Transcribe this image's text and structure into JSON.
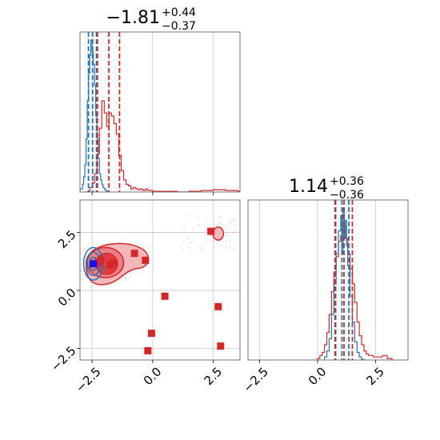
{
  "colors": {
    "red": "#d62728",
    "blue": "#1f77b4",
    "red_fill_outer": "#f4b8bb",
    "red_fill_mid": "#eb7f84",
    "red_fill_inner": "#e03c44"
  },
  "chart_data": [
    {
      "type": "histogram",
      "panel": "top-left",
      "title": {
        "value": "−1.81",
        "sup": "+0.44",
        "sub": "−0.37"
      },
      "xlim": [
        -3.0,
        3.6
      ],
      "xticks": [
        -2.5,
        0.0,
        2.5
      ],
      "grid": true,
      "red_quantiles": [
        -2.28,
        -1.81,
        -1.37
      ],
      "blue_quantiles": [
        -2.65,
        -2.48,
        -2.32
      ],
      "series": [
        {
          "name": "",
          "color": "red",
          "x": [
            -2.8,
            -2.7,
            -2.6,
            -2.5,
            -2.4,
            -2.3,
            -2.2,
            -2.1,
            -2.0,
            -1.9,
            -1.8,
            -1.7,
            -1.6,
            -1.5,
            -1.4,
            -1.3,
            -1.2,
            -1.1,
            -1.0,
            -0.9,
            -0.8,
            -0.7,
            -0.6,
            -0.5,
            -0.4,
            -0.3,
            -0.2,
            0.0,
            0.5,
            1.0,
            1.5,
            2.0,
            2.5,
            3.0,
            3.5
          ],
          "y": [
            0,
            0,
            0.03,
            0.06,
            0.12,
            0.25,
            0.42,
            0.6,
            0.52,
            0.43,
            0.52,
            0.5,
            0.45,
            0.38,
            0.24,
            0.14,
            0.08,
            0.05,
            0.04,
            0.02,
            0.03,
            0.02,
            0.015,
            0.02,
            0.01,
            0.02,
            0.01,
            0.005,
            0.005,
            0,
            0.005,
            0.01,
            0.015,
            0.01,
            0.005
          ]
        },
        {
          "name": "",
          "color": "blue",
          "x": [
            -3.0,
            -2.9,
            -2.85,
            -2.8,
            -2.75,
            -2.7,
            -2.65,
            -2.6,
            -2.55,
            -2.5,
            -2.45,
            -2.4,
            -2.35,
            -2.3,
            -2.25,
            -2.2,
            -2.15,
            -2.1,
            -2.05,
            -2.0,
            -1.95,
            -1.9
          ],
          "y": [
            0.02,
            0.05,
            0.1,
            0.18,
            0.35,
            0.6,
            0.78,
            0.9,
            1.0,
            0.92,
            0.84,
            0.7,
            0.5,
            0.35,
            0.22,
            0.12,
            0.08,
            0.05,
            0.03,
            0.02,
            0.01,
            0.005
          ]
        }
      ]
    },
    {
      "type": "contour+scatter",
      "panel": "bottom-left",
      "xlim": [
        -3.0,
        3.6
      ],
      "ylim": [
        -3.0,
        3.9
      ],
      "xticks": [
        -2.5,
        0.0,
        2.5
      ],
      "yticks": [
        -2.5,
        0.0,
        2.5
      ],
      "grid": true,
      "red_markers": [
        [
          -2.25,
          1.2
        ],
        [
          -2.15,
          1.3
        ],
        [
          -1.6,
          1.2
        ],
        [
          -1.75,
          1.1
        ],
        [
          -0.75,
          1.6
        ],
        [
          -0.3,
          1.3
        ],
        [
          0.5,
          -0.25
        ],
        [
          -0.05,
          -1.85
        ],
        [
          -0.2,
          -2.6
        ],
        [
          2.4,
          2.55
        ],
        [
          2.7,
          -0.7
        ],
        [
          2.8,
          -2.4
        ]
      ],
      "blue_markers": [
        [
          -2.45,
          1.15
        ]
      ]
    },
    {
      "type": "histogram",
      "panel": "bottom-right",
      "title": {
        "value": "1.14",
        "sup": "+0.36",
        "sub": "−0.36"
      },
      "xlim": [
        -3.0,
        3.9
      ],
      "xticks": [
        -2.5,
        0.0,
        2.5
      ],
      "grid": true,
      "red_quantiles": [
        0.78,
        1.14,
        1.5
      ],
      "blue_quantiles": [
        0.75,
        1.05,
        1.35
      ],
      "series": [
        {
          "name": "",
          "color": "red",
          "x": [
            0.0,
            0.1,
            0.2,
            0.3,
            0.4,
            0.5,
            0.6,
            0.7,
            0.8,
            0.9,
            1.0,
            1.1,
            1.2,
            1.3,
            1.4,
            1.5,
            1.6,
            1.7,
            1.8,
            1.9,
            2.0,
            2.1,
            2.2,
            2.4,
            2.6,
            2.8,
            3.0,
            3.2
          ],
          "y": [
            0.01,
            0.03,
            0.05,
            0.1,
            0.18,
            0.3,
            0.45,
            0.58,
            0.68,
            0.78,
            0.82,
            0.88,
            0.8,
            0.7,
            0.6,
            0.5,
            0.38,
            0.25,
            0.16,
            0.1,
            0.06,
            0.04,
            0.03,
            0.02,
            0.02,
            0.03,
            0.01,
            0
          ]
        },
        {
          "name": "",
          "color": "blue",
          "x": [
            0.3,
            0.4,
            0.5,
            0.6,
            0.7,
            0.8,
            0.9,
            1.0,
            1.05,
            1.1,
            1.15,
            1.2,
            1.25,
            1.3,
            1.4,
            1.5,
            1.6,
            1.7,
            1.8,
            1.9
          ],
          "y": [
            0.02,
            0.06,
            0.14,
            0.3,
            0.5,
            0.7,
            0.85,
            0.95,
            0.7,
            1.0,
            0.8,
            0.92,
            0.75,
            0.62,
            0.42,
            0.25,
            0.12,
            0.05,
            0.02,
            0.005
          ]
        }
      ]
    }
  ]
}
